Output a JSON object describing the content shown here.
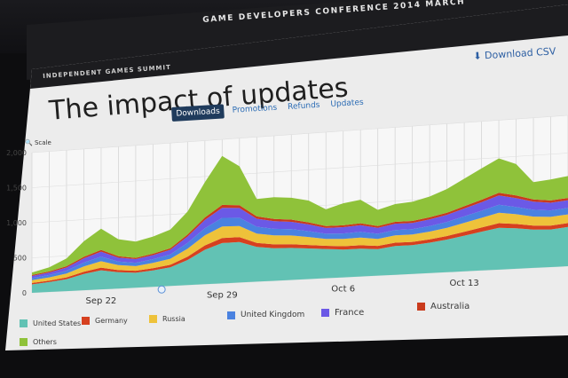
{
  "banner": {
    "conference": "GAME DEVELOPERS CONFERENCE  2014    MARCH"
  },
  "summit": "INDEPENDENT GAMES SUMMIT",
  "title": "The impact of updates",
  "download": {
    "label": "Download CSV"
  },
  "tabs": [
    {
      "label": "Downloads",
      "active": true
    },
    {
      "label": "Promotions",
      "active": false
    },
    {
      "label": "Refunds",
      "active": false
    },
    {
      "label": "Updates",
      "active": false
    }
  ],
  "scale_label": "Scale",
  "chart_data": {
    "type": "area",
    "stacked": true,
    "title": "",
    "xlabel": "",
    "ylabel": "",
    "ylim": [
      0,
      2000
    ],
    "y_ticks": [
      "0",
      "500",
      "1,000",
      "1,500",
      "2,000"
    ],
    "x_tick_labels": [
      {
        "label": "Sep 22",
        "index": 4
      },
      {
        "label": "Sep 29",
        "index": 11
      },
      {
        "label": "Oct 6",
        "index": 18
      },
      {
        "label": "Oct 13",
        "index": 25
      }
    ],
    "grid": true,
    "legend_position": "bottom",
    "series": [
      {
        "name": "United States",
        "color": "#62c2b4",
        "values": [
          120,
          140,
          170,
          230,
          270,
          230,
          210,
          230,
          260,
          350,
          480,
          560,
          560,
          480,
          450,
          440,
          420,
          400,
          380,
          380,
          360,
          390,
          390,
          410,
          440,
          480,
          520,
          560,
          540,
          510,
          500,
          520
        ]
      },
      {
        "name": "Germany",
        "color": "#d6401f",
        "values": [
          20,
          22,
          25,
          32,
          38,
          30,
          28,
          30,
          36,
          48,
          60,
          70,
          68,
          55,
          52,
          52,
          48,
          44,
          45,
          46,
          45,
          46,
          44,
          45,
          48,
          52,
          56,
          62,
          58,
          54,
          52,
          52
        ]
      },
      {
        "name": "Russia",
        "color": "#eec23a",
        "values": [
          40,
          45,
          55,
          75,
          90,
          70,
          65,
          75,
          85,
          110,
          140,
          160,
          155,
          130,
          125,
          120,
          110,
          95,
          100,
          105,
          95,
          100,
          100,
          105,
          110,
          120,
          130,
          140,
          130,
          120,
          115,
          115
        ]
      },
      {
        "name": "United Kingdom",
        "color": "#4a82e0",
        "values": [
          30,
          35,
          40,
          55,
          65,
          50,
          48,
          52,
          60,
          80,
          100,
          120,
          115,
          95,
          90,
          88,
          80,
          70,
          75,
          78,
          70,
          72,
          72,
          76,
          80,
          88,
          95,
          105,
          98,
          90,
          86,
          86
        ]
      },
      {
        "name": "France",
        "color": "#6b59e6",
        "values": [
          30,
          35,
          45,
          60,
          70,
          55,
          50,
          58,
          65,
          90,
          115,
          140,
          135,
          110,
          105,
          100,
          92,
          80,
          86,
          90,
          80,
          85,
          85,
          90,
          95,
          105,
          115,
          125,
          118,
          108,
          102,
          102
        ]
      },
      {
        "name": "Australia",
        "color": "#c93a1c",
        "values": [
          15,
          15,
          18,
          22,
          25,
          20,
          18,
          20,
          22,
          28,
          35,
          40,
          38,
          32,
          30,
          30,
          28,
          25,
          26,
          27,
          25,
          26,
          26,
          27,
          28,
          30,
          33,
          36,
          34,
          31,
          30,
          30
        ]
      },
      {
        "name": "Others",
        "color": "#8fc23a",
        "values": [
          35,
          60,
          110,
          220,
          300,
          240,
          230,
          240,
          260,
          320,
          490,
          680,
          540,
          240,
          300,
          300,
          300,
          230,
          300,
          320,
          220,
          240,
          260,
          280,
          320,
          370,
          420,
          460,
          420,
          230,
          280,
          290
        ]
      }
    ]
  }
}
